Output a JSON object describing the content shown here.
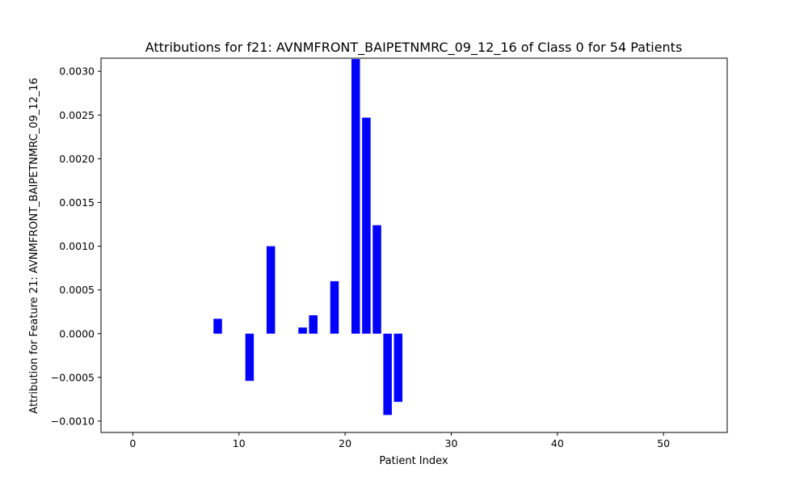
{
  "chart_data": {
    "type": "bar",
    "title": "Attributions for f21: AVNMFRONT_BAIPETNMRC_09_12_16 of Class 0 for 54 Patients",
    "xlabel": "Patient Index",
    "ylabel": "Attribution for Feature 21: AVNMFRONT_BAIPETNMRC_09_12_16",
    "xlim": [
      -3,
      56
    ],
    "ylim": [
      -0.00113,
      0.00315
    ],
    "xticks": [
      0,
      10,
      20,
      30,
      40,
      50
    ],
    "xtick_labels": [
      "0",
      "10",
      "20",
      "30",
      "40",
      "50"
    ],
    "yticks": [
      -0.001,
      -0.0005,
      0.0,
      0.0005,
      0.001,
      0.0015,
      0.002,
      0.0025,
      0.003
    ],
    "ytick_labels": [
      "−0.0010",
      "−0.0005",
      "0.0000",
      "0.0005",
      "0.0010",
      "0.0015",
      "0.0020",
      "0.0025",
      "0.0030"
    ],
    "bar_color": "#0000ff",
    "bar_width": 0.8,
    "grid": false,
    "x": [
      8,
      11,
      13,
      16,
      17,
      19,
      21,
      22,
      23,
      24,
      25
    ],
    "values": [
      0.00017,
      -0.00054,
      0.001,
      7e-05,
      0.00021,
      0.0006,
      0.00314,
      0.00247,
      0.00124,
      -0.00093,
      -0.00078
    ]
  }
}
